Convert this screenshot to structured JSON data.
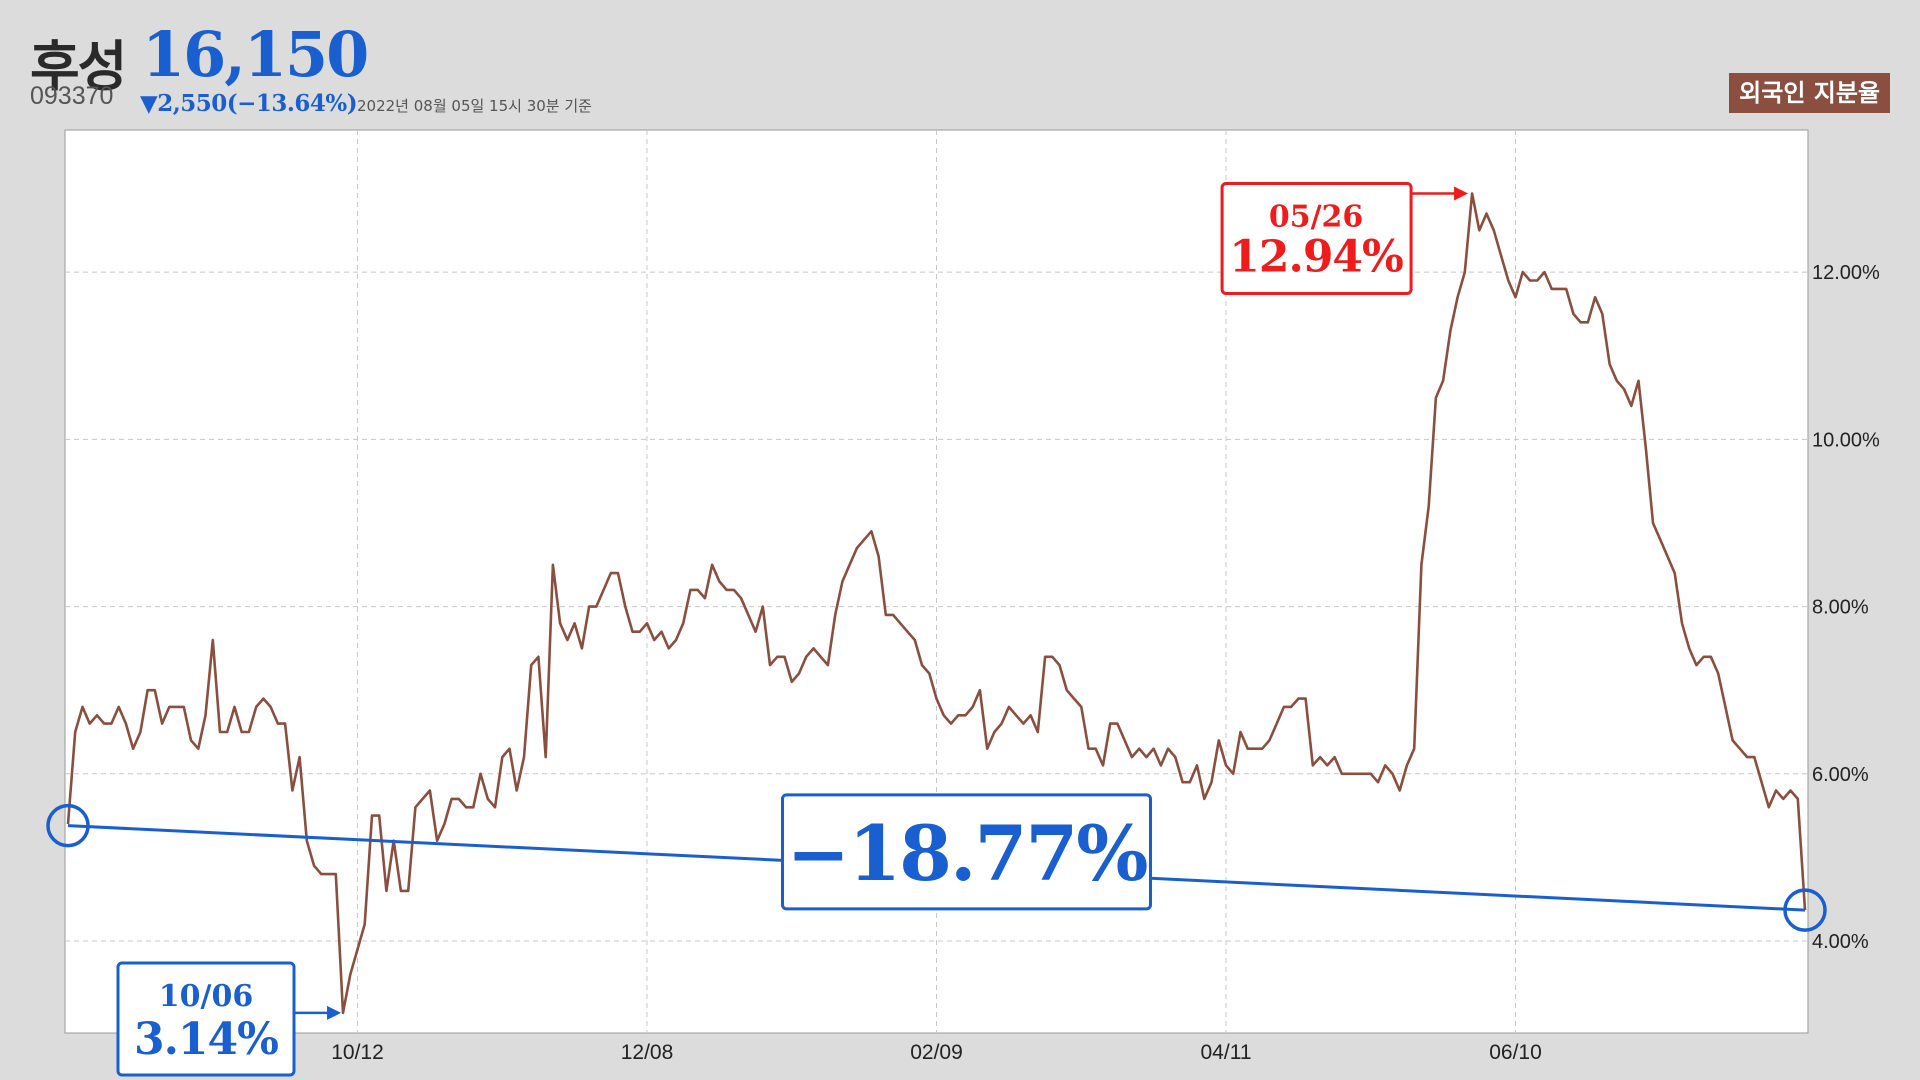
{
  "header": {
    "name": "후성",
    "price": "16,150",
    "code": "093370",
    "change": "▼2,550(−13.64%)",
    "timestamp": "2022년 08월 05일 15시 30분 기준",
    "badge": "외국인 지분율"
  },
  "colors": {
    "background": "#dcdcdc",
    "plot_bg": "#ffffff",
    "line": "#8a4f3e",
    "trend": "#1a5fd0",
    "high": "#ee1c1c",
    "low": "#1a5fd0"
  },
  "annotations": {
    "high": {
      "date": "05/26",
      "value": "12.94%"
    },
    "low": {
      "date": "10/06",
      "value": "3.14%"
    },
    "change": "−18.77%"
  },
  "chart_data": {
    "type": "line",
    "ylim": [
      2.9,
      13.7
    ],
    "yticks": [
      "4.00%",
      "6.00%",
      "8.00%",
      "10.00%",
      "12.00%"
    ],
    "ytick_values": [
      4,
      6,
      8,
      10,
      12
    ],
    "xticks": [
      "10/12",
      "12/08",
      "02/09",
      "04/11",
      "06/10"
    ],
    "xtick_index": [
      40,
      80,
      120,
      160,
      200
    ],
    "grid": true,
    "trend": {
      "start": 5.38,
      "end": 4.37
    },
    "series": [
      {
        "values": [
          5.4,
          6.5,
          6.8,
          6.6,
          6.7,
          6.6,
          6.6,
          6.8,
          6.6,
          6.3,
          6.5,
          7.0,
          7.0,
          6.6,
          6.8,
          6.8,
          6.8,
          6.4,
          6.3,
          6.7,
          7.6,
          6.5,
          6.5,
          6.8,
          6.5,
          6.5,
          6.8,
          6.9,
          6.8,
          6.6,
          6.6,
          5.8,
          6.2,
          5.2,
          4.9,
          4.8,
          4.8,
          4.8,
          3.14,
          3.6,
          3.9,
          4.2,
          5.5,
          5.5,
          4.6,
          5.2,
          4.6,
          4.6,
          5.6,
          5.7,
          5.8,
          5.2,
          5.4,
          5.7,
          5.7,
          5.6,
          5.6,
          6.0,
          5.7,
          5.6,
          6.2,
          6.3,
          5.8,
          6.2,
          7.3,
          7.4,
          6.2,
          8.5,
          7.8,
          7.6,
          7.8,
          7.5,
          8.0,
          8.0,
          8.2,
          8.4,
          8.4,
          8.0,
          7.7,
          7.7,
          7.8,
          7.6,
          7.7,
          7.5,
          7.6,
          7.8,
          8.2,
          8.2,
          8.1,
          8.5,
          8.3,
          8.2,
          8.2,
          8.1,
          7.9,
          7.7,
          8.0,
          7.3,
          7.4,
          7.4,
          7.1,
          7.2,
          7.4,
          7.5,
          7.4,
          7.3,
          7.9,
          8.3,
          8.5,
          8.7,
          8.8,
          8.9,
          8.6,
          7.9,
          7.9,
          7.8,
          7.7,
          7.6,
          7.3,
          7.2,
          6.9,
          6.7,
          6.6,
          6.7,
          6.7,
          6.8,
          7.0,
          6.3,
          6.5,
          6.6,
          6.8,
          6.7,
          6.6,
          6.7,
          6.5,
          7.4,
          7.4,
          7.3,
          7.0,
          6.9,
          6.8,
          6.3,
          6.3,
          6.1,
          6.6,
          6.6,
          6.4,
          6.2,
          6.3,
          6.2,
          6.3,
          6.1,
          6.3,
          6.2,
          5.9,
          5.9,
          6.1,
          5.7,
          5.9,
          6.4,
          6.1,
          6.0,
          6.5,
          6.3,
          6.3,
          6.3,
          6.4,
          6.6,
          6.8,
          6.8,
          6.9,
          6.9,
          6.1,
          6.2,
          6.1,
          6.2,
          6.0,
          6.0,
          6.0,
          6.0,
          6.0,
          5.9,
          6.1,
          6.0,
          5.8,
          6.1,
          6.3,
          8.5,
          9.2,
          10.5,
          10.7,
          11.3,
          11.7,
          12.0,
          12.94,
          12.5,
          12.7,
          12.5,
          12.2,
          11.9,
          11.7,
          12.0,
          11.9,
          11.9,
          12.0,
          11.8,
          11.8,
          11.8,
          11.5,
          11.4,
          11.4,
          11.7,
          11.5,
          10.9,
          10.7,
          10.6,
          10.4,
          10.7,
          9.9,
          9.0,
          8.8,
          8.6,
          8.4,
          7.8,
          7.5,
          7.3,
          7.4,
          7.4,
          7.2,
          6.8,
          6.4,
          6.3,
          6.2,
          6.2,
          5.9,
          5.6,
          5.8,
          5.7,
          5.8,
          5.7,
          4.37
        ]
      }
    ]
  }
}
